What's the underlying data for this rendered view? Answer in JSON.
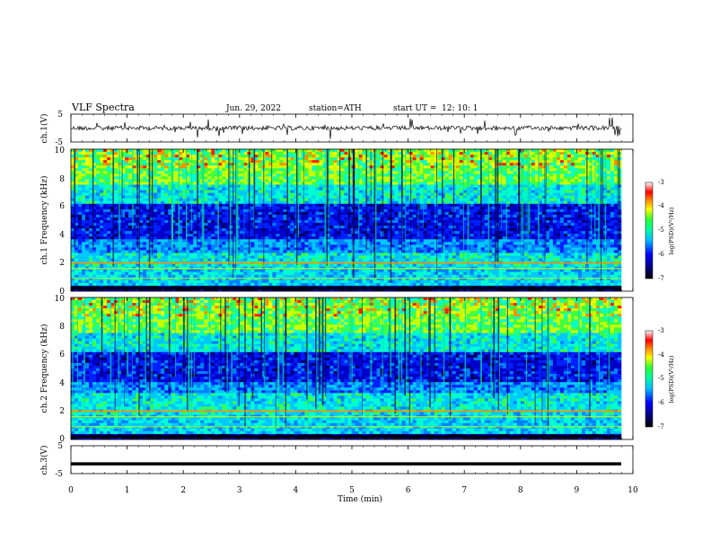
{
  "header": {
    "title": "VLF Spectra",
    "date": "Jun. 29, 2022",
    "station": "station=ATH",
    "start_label": "start UT =",
    "start_time": "12: 10: 1"
  },
  "chart_data": [
    {
      "type": "line",
      "panel": "ch1-waveform",
      "ylabel": "ch.1(V)",
      "y_ticks": [
        "5",
        "-5"
      ],
      "ylim": [
        -5,
        5
      ],
      "xlim": [
        0,
        10
      ],
      "description_of_signal": "noisy waveform near 0 V with spikes"
    },
    {
      "type": "heatmap",
      "panel": "ch1-spectrogram",
      "ylabel": "ch.1 Frequency (kHz)",
      "y_ticks": [
        "10",
        "8",
        "6",
        "4",
        "2",
        "0"
      ],
      "ylim": [
        0,
        10
      ],
      "xlim": [
        0,
        9.8
      ],
      "colorbar": {
        "label": "log(PSD)(V²/Hz)",
        "ticks": [
          "-3",
          "-4",
          "-5",
          "-6",
          "-7"
        ],
        "range": [
          -7,
          -3
        ]
      }
    },
    {
      "type": "heatmap",
      "panel": "ch2-spectrogram",
      "ylabel": "ch.2 Frequency (kHz)",
      "y_ticks": [
        "10",
        "8",
        "6",
        "4",
        "2",
        "0"
      ],
      "ylim": [
        0,
        10
      ],
      "xlim": [
        0,
        9.8
      ],
      "colorbar": {
        "label": "log(PSD)(V²/Hz)",
        "ticks": [
          "-3",
          "-4",
          "-5",
          "-6",
          "-7"
        ],
        "range": [
          -7,
          -3
        ]
      }
    },
    {
      "type": "line",
      "panel": "ch3-waveform",
      "ylabel": "ch.3(V)",
      "y_ticks": [
        "5",
        "-5"
      ],
      "ylim": [
        -5,
        5
      ],
      "xlim": [
        0,
        10
      ],
      "level": -1.5
    }
  ],
  "x_axis": {
    "label": "Time (min)",
    "ticks": [
      "0",
      "1",
      "2",
      "3",
      "4",
      "5",
      "6",
      "7",
      "8",
      "9",
      "10"
    ],
    "range": [
      0,
      10
    ]
  },
  "colors": {
    "colormap": [
      "#000000",
      "#00008b",
      "#0000ff",
      "#00bfff",
      "#00ffcc",
      "#33ff33",
      "#ffff00",
      "#ff8000",
      "#ff0000",
      "#ffffff"
    ]
  }
}
